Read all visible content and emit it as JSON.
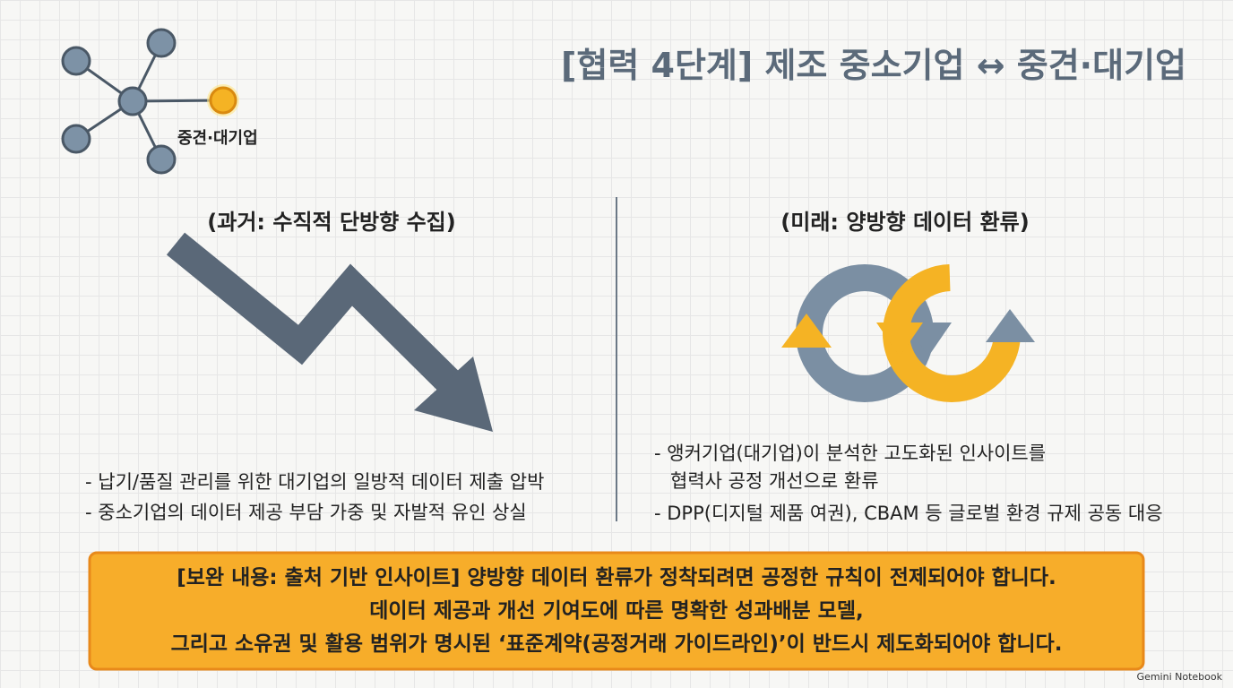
{
  "header": {
    "title": "[협력 4단계] 제조 중소기업 ↔ 중견·대기업",
    "network_label": "중견·대기업"
  },
  "past": {
    "heading": "(과거: 수직적 단방향 수집)",
    "bullets": [
      "- 납기/품질 관리를 위한 대기업의 일방적 데이터 제출 압박",
      "- 중소기업의 데이터 제공 부담 가중 및 자발적 유인 상실"
    ]
  },
  "future": {
    "heading": "(미래: 양방향 데이터 환류)",
    "bullets": [
      [
        "- 앵커기업(대기업)이 분석한 고도화된 인사이트를",
        "협력사 공정 개선으로 환류"
      ],
      [
        "- DPP(디지털 제품 여권), CBAM 등 글로벌 환경 규제 공동 대응"
      ]
    ]
  },
  "callout": {
    "lines": [
      "[보완 내용: 출처 기반 인사이트] 양방향 데이터 환류가 정착되려면 공정한 규칙이 전제되어야 합니다.",
      "데이터 제공과 개선 기여도에 따른 명확한 성과배분 모델,",
      "그리고 소유권 및 활용 범위가 명시된 ‘표준계약(공정거래 가이드라인)’이 반드시 제도화되어야 합니다."
    ]
  },
  "footer": {
    "watermark": "Gemini Notebook"
  }
}
